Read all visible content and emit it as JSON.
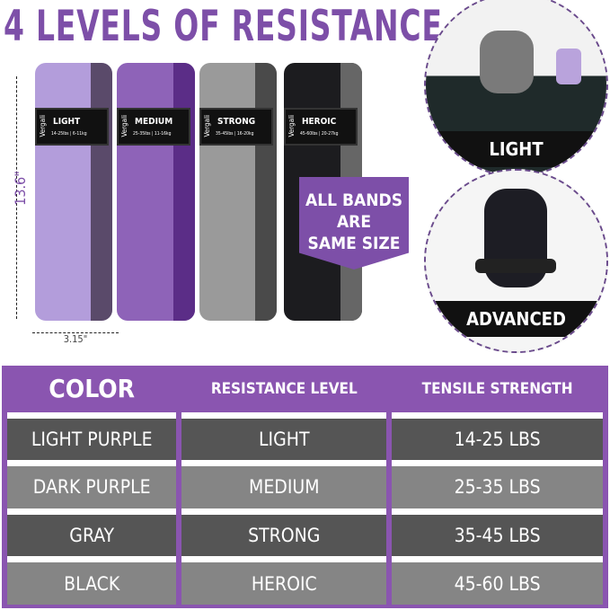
{
  "title": "4 LEVELS OF RESISTANCE",
  "dimensions": {
    "height": "13.6\"",
    "width": "3.15\""
  },
  "bands": [
    {
      "brand": "Vergali",
      "level": "LIGHT",
      "range": "14-25lbs | 6-11kg",
      "color": "#b39ddb",
      "inner": "#5a4a6a"
    },
    {
      "brand": "Vergali",
      "level": "MEDIUM",
      "range": "25-35lbs | 11-16kg",
      "color": "#8e63b8",
      "inner": "#5b2d87"
    },
    {
      "brand": "Vergali",
      "level": "STRONG",
      "range": "35-45lbs | 16-20kg",
      "color": "#9a9a9a",
      "inner": "#4a4a4a"
    },
    {
      "brand": "Vergali",
      "level": "HEROIC",
      "range": "45-60lbs | 20-27kg",
      "color": "#1c1c1f",
      "inner": "#666"
    }
  ],
  "callout": [
    "ALL BANDS",
    "ARE",
    "SAME SIZE"
  ],
  "circles": [
    {
      "label": "LIGHT"
    },
    {
      "label": "ADVANCED"
    }
  ],
  "table": {
    "headers": [
      "COLOR",
      "RESISTANCE LEVEL",
      "TENSILE STRENGTH"
    ],
    "rows": [
      [
        "LIGHT PURPLE",
        "LIGHT",
        "14-25 LBS"
      ],
      [
        "DARK PURPLE",
        "MEDIUM",
        "25-35 LBS"
      ],
      [
        "GRAY",
        "STRONG",
        "35-45 LBS"
      ],
      [
        "BLACK",
        "HEROIC",
        "45-60 LBS"
      ]
    ]
  },
  "colors": {
    "accent": "#7d4fa8",
    "row_dark": "#555555",
    "row_light": "#858585"
  }
}
